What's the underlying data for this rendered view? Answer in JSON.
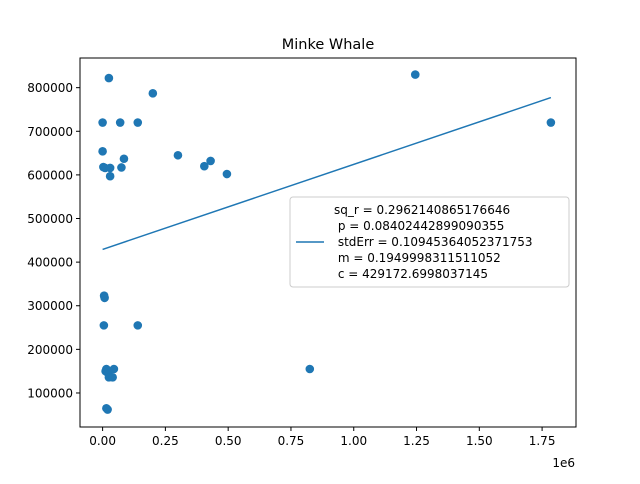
{
  "chart_data": {
    "type": "scatter",
    "title": "Minke Whale",
    "xlabel": "",
    "ylabel": "",
    "x_offset_label": "1e6",
    "xlim": [
      -0.09,
      1.885
    ],
    "ylim": [
      22000,
      868000
    ],
    "x_ticks": [
      0.0,
      0.25,
      0.5,
      0.75,
      1.0,
      1.25,
      1.5,
      1.75
    ],
    "x_tick_labels": [
      "0.00",
      "0.25",
      "0.50",
      "0.75",
      "1.00",
      "1.25",
      "1.50",
      "1.75"
    ],
    "y_ticks": [
      100000,
      200000,
      300000,
      400000,
      500000,
      600000,
      700000,
      800000
    ],
    "y_tick_labels": [
      "100000",
      "200000",
      "300000",
      "400000",
      "500000",
      "600000",
      "700000",
      "800000"
    ],
    "grid": false,
    "point_color": "#1f77b4",
    "line_color": "#1f77b4",
    "points": [
      {
        "x": 0.0,
        "y": 720000
      },
      {
        "x": 0.0,
        "y": 654000
      },
      {
        "x": 0.003,
        "y": 618000
      },
      {
        "x": 0.005,
        "y": 255000
      },
      {
        "x": 0.006,
        "y": 323000
      },
      {
        "x": 0.008,
        "y": 318000
      },
      {
        "x": 0.01,
        "y": 616000
      },
      {
        "x": 0.012,
        "y": 150000
      },
      {
        "x": 0.015,
        "y": 155000
      },
      {
        "x": 0.015,
        "y": 65000
      },
      {
        "x": 0.02,
        "y": 62000
      },
      {
        "x": 0.022,
        "y": 145000
      },
      {
        "x": 0.025,
        "y": 822000
      },
      {
        "x": 0.025,
        "y": 136000
      },
      {
        "x": 0.03,
        "y": 616000
      },
      {
        "x": 0.03,
        "y": 597000
      },
      {
        "x": 0.04,
        "y": 136000
      },
      {
        "x": 0.045,
        "y": 155000
      },
      {
        "x": 0.07,
        "y": 720000
      },
      {
        "x": 0.075,
        "y": 617000
      },
      {
        "x": 0.085,
        "y": 637000
      },
      {
        "x": 0.14,
        "y": 720000
      },
      {
        "x": 0.14,
        "y": 255000
      },
      {
        "x": 0.2,
        "y": 787000
      },
      {
        "x": 0.3,
        "y": 645000
      },
      {
        "x": 0.405,
        "y": 620000
      },
      {
        "x": 0.43,
        "y": 632000
      },
      {
        "x": 0.495,
        "y": 602000
      },
      {
        "x": 0.825,
        "y": 155000
      },
      {
        "x": 1.245,
        "y": 830000
      },
      {
        "x": 1.785,
        "y": 720000
      }
    ],
    "fit_line": {
      "x": [
        0.0,
        1.785
      ],
      "y": [
        429172.6998037145,
        777239.4
      ],
      "legend_label": "sq_r = 0.2962140865176646\n p = 0.08402442899090355\n stdErr = 0.10945364052371753\n m = 0.1949998311511052\n c = 429172.6998037145"
    },
    "legend": {
      "placement": "center-right",
      "lines": [
        "sq_r = 0.2962140865176646",
        " p = 0.08402442899090355",
        " stdErr = 0.10945364052371753",
        " m = 0.1949998311511052",
        " c = 429172.6998037145"
      ]
    }
  }
}
